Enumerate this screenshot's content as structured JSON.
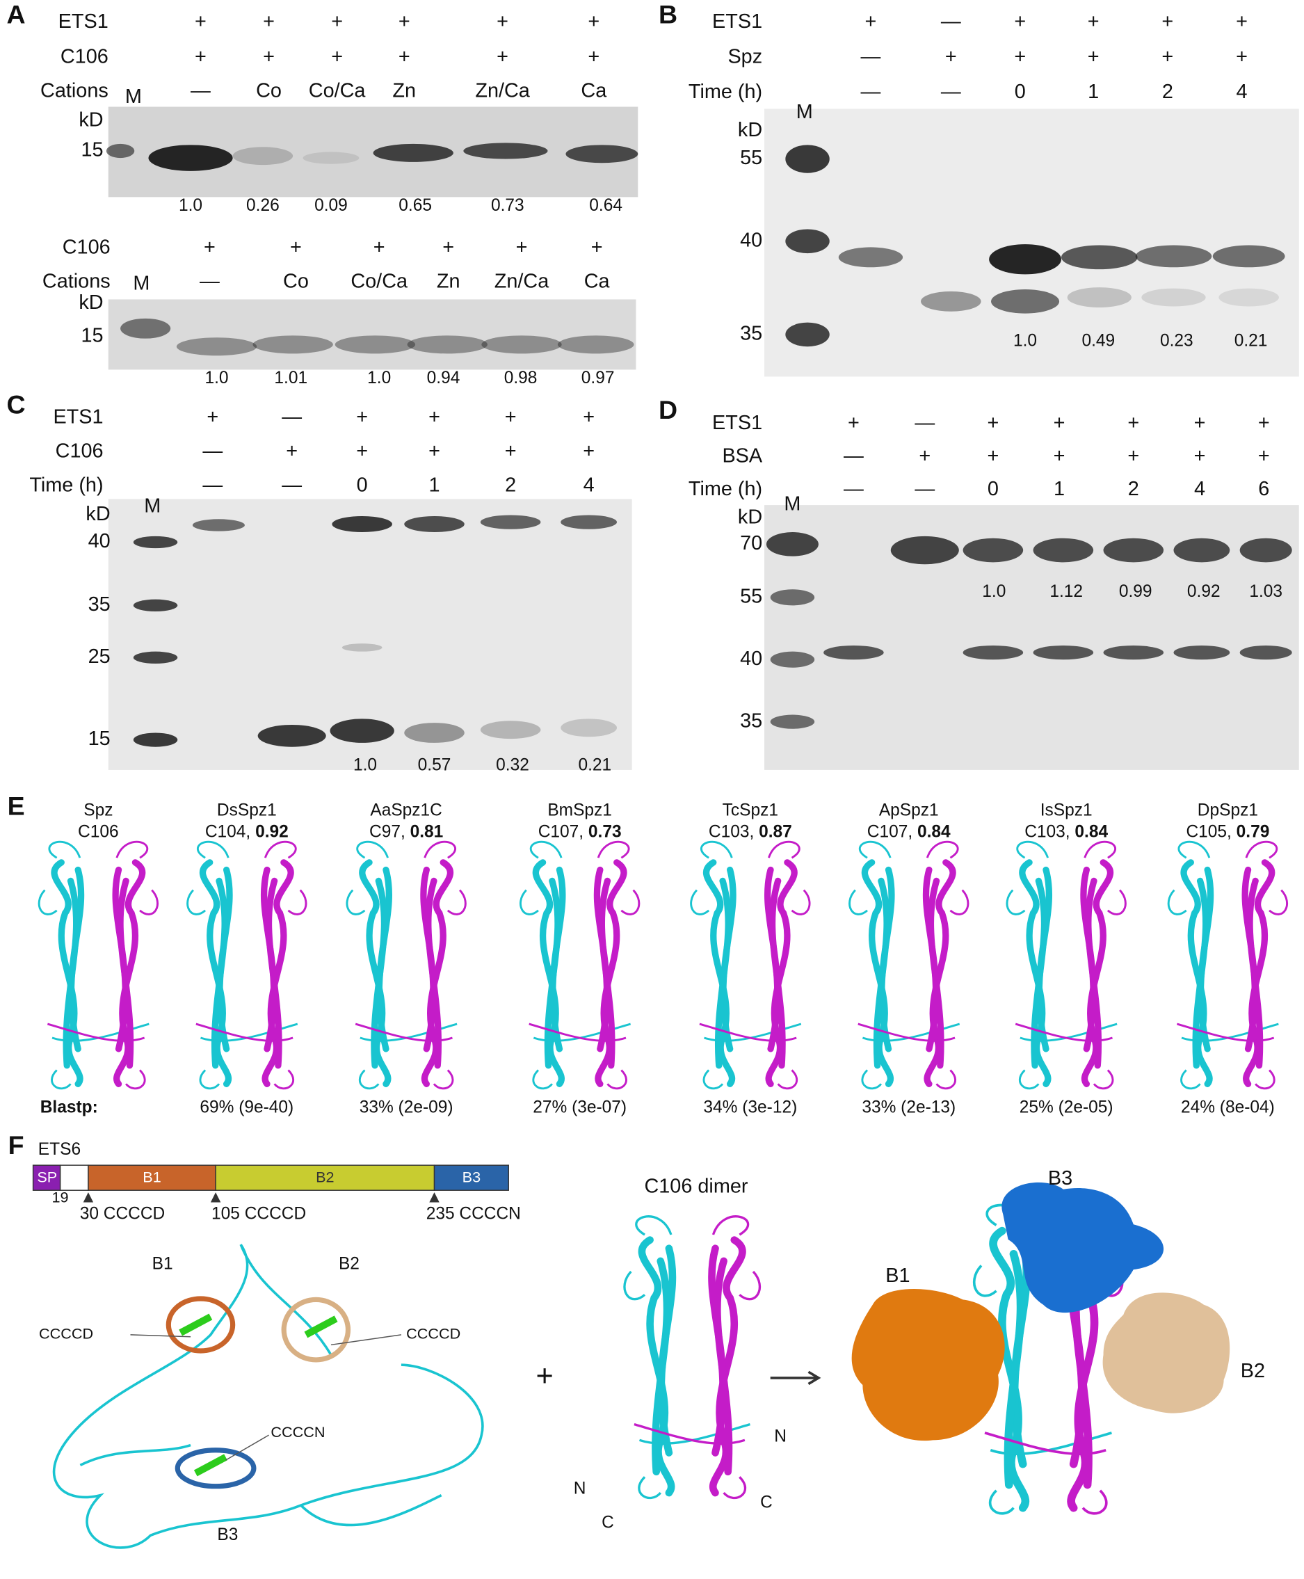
{
  "panel_a": {
    "label": "A",
    "gel_1": {
      "rows": [
        {
          "name": "ETS1",
          "lanes": [
            "+",
            "+",
            "+",
            "+",
            "+",
            "+"
          ]
        },
        {
          "name": "C106",
          "lanes": [
            "+",
            "+",
            "+",
            "+",
            "+",
            "+"
          ]
        },
        {
          "name": "Cations",
          "lanes": [
            "—",
            "Co",
            "Co/Ca",
            "Zn",
            "Zn/Ca",
            "Ca"
          ]
        }
      ],
      "marker": "M",
      "unit": "kD",
      "mw": [
        "15"
      ],
      "ratios": [
        "1.0",
        "0.26",
        "0.09",
        "0.65",
        "0.73",
        "0.64"
      ]
    },
    "gel_2": {
      "rows": [
        {
          "name": "C106",
          "lanes": [
            "+",
            "+",
            "+",
            "+",
            "+",
            "+"
          ]
        },
        {
          "name": "Cations",
          "lanes": [
            "—",
            "Co",
            "Co/Ca",
            "Zn",
            "Zn/Ca",
            "Ca"
          ]
        }
      ],
      "marker": "M",
      "unit": "kD",
      "mw": [
        "15"
      ],
      "ratios": [
        "1.0",
        "1.01",
        "1.0",
        "0.94",
        "0.98",
        "0.97"
      ]
    }
  },
  "panel_b": {
    "label": "B",
    "rows": [
      {
        "name": "ETS1",
        "lanes": [
          "+",
          "—",
          "+",
          "+",
          "+",
          "+"
        ]
      },
      {
        "name": "Spz",
        "lanes": [
          "—",
          "+",
          "+",
          "+",
          "+",
          "+"
        ]
      },
      {
        "name": "Time (h)",
        "lanes": [
          "—",
          "—",
          "0",
          "1",
          "2",
          "4"
        ]
      }
    ],
    "marker": "M",
    "unit": "kD",
    "mw": [
      "55",
      "40",
      "35"
    ],
    "ratios": [
      "1.0",
      "0.49",
      "0.23",
      "0.21"
    ]
  },
  "panel_c": {
    "label": "C",
    "rows": [
      {
        "name": "ETS1",
        "lanes": [
          "+",
          "—",
          "+",
          "+",
          "+",
          "+"
        ]
      },
      {
        "name": "C106",
        "lanes": [
          "—",
          "+",
          "+",
          "+",
          "+",
          "+"
        ]
      },
      {
        "name": "Time (h)",
        "lanes": [
          "—",
          "—",
          "0",
          "1",
          "2",
          "4"
        ]
      }
    ],
    "marker": "M",
    "unit": "kD",
    "mw": [
      "40",
      "35",
      "25",
      "15"
    ],
    "ratios": [
      "1.0",
      "0.57",
      "0.32",
      "0.21"
    ]
  },
  "panel_d": {
    "label": "D",
    "rows": [
      {
        "name": "ETS1",
        "lanes": [
          "+",
          "—",
          "+",
          "+",
          "+",
          "+",
          "+"
        ]
      },
      {
        "name": "BSA",
        "lanes": [
          "—",
          "+",
          "+",
          "+",
          "+",
          "+",
          "+"
        ]
      },
      {
        "name": "Time (h)",
        "lanes": [
          "—",
          "—",
          "0",
          "1",
          "2",
          "4",
          "6"
        ]
      }
    ],
    "marker": "M",
    "unit": "kD",
    "mw": [
      "70",
      "55",
      "40",
      "35"
    ],
    "ratios": [
      "1.0",
      "1.12",
      "0.99",
      "0.92",
      "1.03"
    ]
  },
  "panel_e": {
    "label": "E",
    "structures": [
      {
        "name": "Spz",
        "cys": "C106"
      },
      {
        "name": "DsSpz1",
        "cys": "C104,",
        "score": "0.92"
      },
      {
        "name": "AaSpz1C",
        "cys": "C97,",
        "score": "0.81"
      },
      {
        "name": "BmSpz1",
        "cys": "C107,",
        "score": "0.73"
      },
      {
        "name": "TcSpz1",
        "cys": "C103,",
        "score": "0.87"
      },
      {
        "name": "ApSpz1",
        "cys": "C107,",
        "score": "0.84"
      },
      {
        "name": "IsSpz1",
        "cys": "C103,",
        "score": "0.84"
      },
      {
        "name": "DpSpz1",
        "cys": "C105,",
        "score": "0.79"
      }
    ],
    "blastp_label": "Blastp:",
    "blastp": [
      "69% (9e-40)",
      "33% (2e-09)",
      "27% (3e-07)",
      "34% (3e-12)",
      "33% (2e-13)",
      "25% (2e-05)",
      "24% (8e-04)"
    ]
  },
  "panel_f": {
    "label": "F",
    "protein": "ETS6",
    "domains": [
      "SP",
      "B1",
      "B2",
      "B3"
    ],
    "sp_end": "19",
    "sites": [
      "30 CCCCD",
      "105 CCCCD",
      "235 CCCCN"
    ],
    "structure_labels": [
      "B1",
      "B2",
      "B3"
    ],
    "motifs": [
      "CCCCD",
      "CCCCD",
      "CCCCN"
    ],
    "plus": "+",
    "dimer_title": "C106 dimer",
    "termini": [
      "N",
      "N",
      "C",
      "C"
    ],
    "complex_labels": [
      "B3",
      "B1",
      "B2"
    ]
  }
}
